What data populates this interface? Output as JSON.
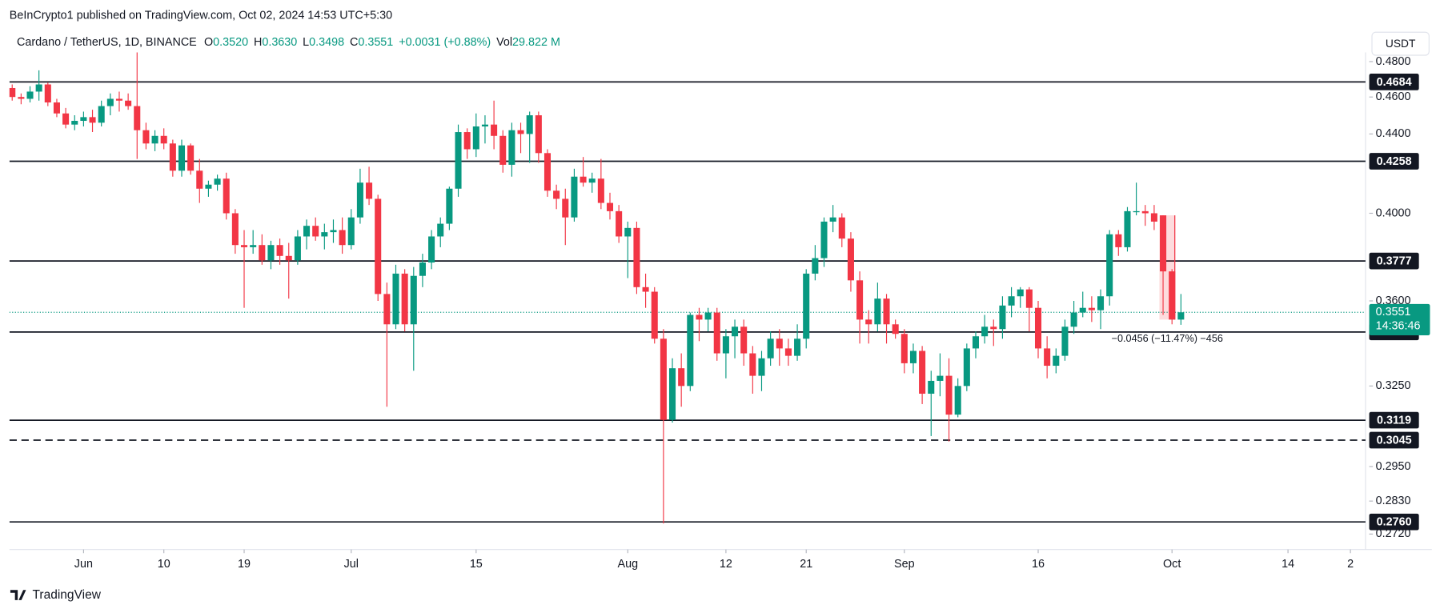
{
  "header": "BeInCrypto1 published on TradingView.com, Oct 02, 2024 14:53 UTC+5:30",
  "branding": "TradingView",
  "currency_button": "USDT",
  "chart_data": {
    "type": "candlestick",
    "legend": {
      "symbol": "Cardano / TetherUS, 1D, BINANCE",
      "items": [
        {
          "key": "O",
          "value": "0.3520"
        },
        {
          "key": "H",
          "value": "0.3630"
        },
        {
          "key": "L",
          "value": "0.3498"
        },
        {
          "key": "C",
          "value": "0.3551"
        }
      ],
      "change": "+0.0031 (+0.88%)",
      "volume_key": "Vol",
      "volume": "29.822 M"
    },
    "up_color": "#089981",
    "down_color": "#f23645",
    "log_scale": true,
    "grid": false,
    "x": [
      "2024-05-24",
      "2024-05-25",
      "2024-05-26",
      "2024-05-27",
      "2024-05-28",
      "2024-05-29",
      "2024-05-30",
      "2024-05-31",
      "2024-06-01",
      "2024-06-02",
      "2024-06-03",
      "2024-06-04",
      "2024-06-05",
      "2024-06-06",
      "2024-06-07",
      "2024-06-08",
      "2024-06-09",
      "2024-06-10",
      "2024-06-11",
      "2024-06-12",
      "2024-06-13",
      "2024-06-14",
      "2024-06-15",
      "2024-06-16",
      "2024-06-17",
      "2024-06-18",
      "2024-06-19",
      "2024-06-20",
      "2024-06-21",
      "2024-06-22",
      "2024-06-23",
      "2024-06-24",
      "2024-06-25",
      "2024-06-26",
      "2024-06-27",
      "2024-06-28",
      "2024-06-29",
      "2024-06-30",
      "2024-07-01",
      "2024-07-02",
      "2024-07-03",
      "2024-07-04",
      "2024-07-05",
      "2024-07-06",
      "2024-07-07",
      "2024-07-08",
      "2024-07-09",
      "2024-07-10",
      "2024-07-11",
      "2024-07-12",
      "2024-07-13",
      "2024-07-14",
      "2024-07-15",
      "2024-07-16",
      "2024-07-17",
      "2024-07-18",
      "2024-07-19",
      "2024-07-20",
      "2024-07-21",
      "2024-07-22",
      "2024-07-23",
      "2024-07-24",
      "2024-07-25",
      "2024-07-26",
      "2024-07-27",
      "2024-07-28",
      "2024-07-29",
      "2024-07-30",
      "2024-07-31",
      "2024-08-01",
      "2024-08-02",
      "2024-08-03",
      "2024-08-04",
      "2024-08-05",
      "2024-08-06",
      "2024-08-07",
      "2024-08-08",
      "2024-08-09",
      "2024-08-10",
      "2024-08-11",
      "2024-08-12",
      "2024-08-13",
      "2024-08-14",
      "2024-08-15",
      "2024-08-16",
      "2024-08-17",
      "2024-08-18",
      "2024-08-19",
      "2024-08-20",
      "2024-08-21",
      "2024-08-22",
      "2024-08-23",
      "2024-08-24",
      "2024-08-25",
      "2024-08-26",
      "2024-08-27",
      "2024-08-28",
      "2024-08-29",
      "2024-08-30",
      "2024-08-31",
      "2024-09-01",
      "2024-09-02",
      "2024-09-03",
      "2024-09-04",
      "2024-09-05",
      "2024-09-06",
      "2024-09-07",
      "2024-09-08",
      "2024-09-09",
      "2024-09-10",
      "2024-09-11",
      "2024-09-12",
      "2024-09-13",
      "2024-09-14",
      "2024-09-15",
      "2024-09-16",
      "2024-09-17",
      "2024-09-18",
      "2024-09-19",
      "2024-09-20",
      "2024-09-21",
      "2024-09-22",
      "2024-09-23",
      "2024-09-24",
      "2024-09-25",
      "2024-09-26",
      "2024-09-27",
      "2024-09-28",
      "2024-09-29",
      "2024-09-30",
      "2024-10-01",
      "2024-10-02"
    ],
    "open": [
      0.465,
      0.46,
      0.459,
      0.463,
      0.467,
      0.457,
      0.451,
      0.445,
      0.447,
      0.449,
      0.446,
      0.455,
      0.459,
      0.458,
      0.455,
      0.442,
      0.435,
      0.439,
      0.435,
      0.421,
      0.434,
      0.421,
      0.412,
      0.414,
      0.417,
      0.4,
      0.385,
      0.384,
      0.385,
      0.378,
      0.385,
      0.38,
      0.378,
      0.389,
      0.394,
      0.389,
      0.391,
      0.392,
      0.385,
      0.398,
      0.415,
      0.407,
      0.363,
      0.35,
      0.372,
      0.35,
      0.371,
      0.377,
      0.389,
      0.395,
      0.412,
      0.441,
      0.432,
      0.444,
      0.445,
      0.439,
      0.424,
      0.442,
      0.44,
      0.45,
      0.43,
      0.411,
      0.407,
      0.398,
      0.418,
      0.415,
      0.417,
      0.405,
      0.401,
      0.389,
      0.393,
      0.366,
      0.364,
      0.344,
      0.312,
      0.332,
      0.325,
      0.354,
      0.352,
      0.355,
      0.338,
      0.345,
      0.349,
      0.338,
      0.329,
      0.336,
      0.344,
      0.34,
      0.337,
      0.344,
      0.372,
      0.379,
      0.396,
      0.398,
      0.388,
      0.369,
      0.352,
      0.35,
      0.361,
      0.35,
      0.346,
      0.334,
      0.339,
      0.322,
      0.327,
      0.329,
      0.314,
      0.325,
      0.34,
      0.345,
      0.349,
      0.348,
      0.358,
      0.362,
      0.365,
      0.357,
      0.34,
      0.333,
      0.337,
      0.349,
      0.355,
      0.357,
      0.356,
      0.362,
      0.39,
      0.384,
      0.4005,
      0.401,
      0.4,
      0.399,
      0.373,
      0.352
    ],
    "high": [
      0.467,
      0.462,
      0.466,
      0.475,
      0.468,
      0.459,
      0.454,
      0.45,
      0.452,
      0.453,
      0.458,
      0.462,
      0.463,
      0.462,
      0.49,
      0.446,
      0.442,
      0.443,
      0.437,
      0.437,
      0.435,
      0.427,
      0.416,
      0.419,
      0.42,
      0.402,
      0.392,
      0.392,
      0.39,
      0.387,
      0.388,
      0.386,
      0.392,
      0.397,
      0.398,
      0.395,
      0.397,
      0.398,
      0.402,
      0.422,
      0.423,
      0.409,
      0.368,
      0.376,
      0.374,
      0.375,
      0.381,
      0.392,
      0.398,
      0.413,
      0.445,
      0.443,
      0.451,
      0.45,
      0.458,
      0.442,
      0.446,
      0.446,
      0.452,
      0.452,
      0.432,
      0.414,
      0.412,
      0.422,
      0.428,
      0.42,
      0.427,
      0.41,
      0.404,
      0.396,
      0.396,
      0.372,
      0.366,
      0.348,
      0.336,
      0.338,
      0.355,
      0.357,
      0.357,
      0.357,
      0.348,
      0.352,
      0.352,
      0.341,
      0.339,
      0.347,
      0.348,
      0.344,
      0.35,
      0.374,
      0.385,
      0.398,
      0.404,
      0.4,
      0.391,
      0.373,
      0.356,
      0.368,
      0.363,
      0.352,
      0.348,
      0.342,
      0.341,
      0.331,
      0.338,
      0.336,
      0.328,
      0.342,
      0.347,
      0.354,
      0.352,
      0.362,
      0.366,
      0.366,
      0.366,
      0.36,
      0.345,
      0.34,
      0.352,
      0.36,
      0.364,
      0.362,
      0.365,
      0.392,
      0.392,
      0.403,
      0.415,
      0.404,
      0.404,
      0.399,
      0.374,
      0.363
    ],
    "low": [
      0.458,
      0.456,
      0.457,
      0.458,
      0.455,
      0.449,
      0.443,
      0.442,
      0.444,
      0.441,
      0.444,
      0.45,
      0.452,
      0.453,
      0.427,
      0.432,
      0.431,
      0.432,
      0.418,
      0.418,
      0.419,
      0.405,
      0.408,
      0.411,
      0.397,
      0.381,
      0.357,
      0.381,
      0.376,
      0.374,
      0.376,
      0.361,
      0.376,
      0.383,
      0.387,
      0.383,
      0.386,
      0.381,
      0.383,
      0.395,
      0.404,
      0.36,
      0.317,
      0.348,
      0.347,
      0.331,
      0.366,
      0.374,
      0.384,
      0.392,
      0.408,
      0.427,
      0.428,
      0.435,
      0.432,
      0.42,
      0.418,
      0.43,
      0.425,
      0.425,
      0.408,
      0.402,
      0.385,
      0.396,
      0.413,
      0.41,
      0.402,
      0.397,
      0.386,
      0.37,
      0.363,
      0.357,
      0.342,
      0.2755,
      0.311,
      0.317,
      0.323,
      0.343,
      0.347,
      0.335,
      0.328,
      0.336,
      0.333,
      0.322,
      0.323,
      0.333,
      0.333,
      0.333,
      0.335,
      0.34,
      0.369,
      0.375,
      0.391,
      0.384,
      0.364,
      0.342,
      0.342,
      0.347,
      0.342,
      0.344,
      0.33,
      0.33,
      0.318,
      0.306,
      0.321,
      0.304,
      0.313,
      0.323,
      0.336,
      0.342,
      0.341,
      0.344,
      0.353,
      0.357,
      0.347,
      0.336,
      0.328,
      0.33,
      0.335,
      0.346,
      0.353,
      0.351,
      0.348,
      0.358,
      0.38,
      0.382,
      0.399,
      0.394,
      0.392,
      0.354,
      0.35,
      0.3498
    ],
    "close": [
      0.46,
      0.459,
      0.463,
      0.467,
      0.457,
      0.451,
      0.445,
      0.447,
      0.449,
      0.446,
      0.455,
      0.459,
      0.458,
      0.455,
      0.442,
      0.435,
      0.439,
      0.435,
      0.421,
      0.434,
      0.421,
      0.412,
      0.414,
      0.417,
      0.4,
      0.385,
      0.384,
      0.385,
      0.378,
      0.385,
      0.38,
      0.378,
      0.389,
      0.394,
      0.389,
      0.391,
      0.392,
      0.385,
      0.398,
      0.415,
      0.407,
      0.363,
      0.35,
      0.372,
      0.35,
      0.371,
      0.377,
      0.389,
      0.395,
      0.412,
      0.441,
      0.432,
      0.444,
      0.445,
      0.439,
      0.424,
      0.442,
      0.44,
      0.45,
      0.43,
      0.411,
      0.407,
      0.398,
      0.418,
      0.415,
      0.417,
      0.405,
      0.401,
      0.389,
      0.393,
      0.366,
      0.364,
      0.344,
      0.312,
      0.332,
      0.325,
      0.354,
      0.352,
      0.355,
      0.338,
      0.345,
      0.349,
      0.338,
      0.329,
      0.336,
      0.344,
      0.34,
      0.337,
      0.344,
      0.372,
      0.379,
      0.396,
      0.398,
      0.388,
      0.369,
      0.352,
      0.35,
      0.361,
      0.35,
      0.346,
      0.334,
      0.339,
      0.322,
      0.327,
      0.329,
      0.314,
      0.325,
      0.34,
      0.345,
      0.349,
      0.348,
      0.358,
      0.362,
      0.365,
      0.357,
      0.34,
      0.333,
      0.337,
      0.349,
      0.355,
      0.357,
      0.356,
      0.362,
      0.39,
      0.384,
      0.401,
      0.401,
      0.4,
      0.396,
      0.373,
      0.352,
      0.3551
    ],
    "xlim": [
      "2024-05-23",
      "2024-10-23"
    ],
    "xticks": [
      {
        "value": "2024-06-01",
        "label": "Jun"
      },
      {
        "value": "2024-06-10",
        "label": "10"
      },
      {
        "value": "2024-06-19",
        "label": "19"
      },
      {
        "value": "2024-07-01",
        "label": "Jul"
      },
      {
        "value": "2024-07-15",
        "label": "15"
      },
      {
        "value": "2024-08-01",
        "label": "Aug"
      },
      {
        "value": "2024-08-12",
        "label": "12"
      },
      {
        "value": "2024-08-21",
        "label": "21"
      },
      {
        "value": "2024-09-01",
        "label": "Sep"
      },
      {
        "value": "2024-09-16",
        "label": "16"
      },
      {
        "value": "2024-10-01",
        "label": "Oct"
      },
      {
        "value": "2024-10-14",
        "label": "14"
      },
      {
        "value": "2024-10-21",
        "label": "2"
      }
    ],
    "ylim": [
      0.267,
      0.4853
    ],
    "yticks": [
      {
        "value": 0.48,
        "label": "0.4800"
      },
      {
        "value": 0.46,
        "label": "0.4600"
      },
      {
        "value": 0.44,
        "label": "0.4400"
      },
      {
        "value": 0.4,
        "label": "0.4000"
      },
      {
        "value": 0.36,
        "label": "0.3600"
      },
      {
        "value": 0.325,
        "label": "0.3250"
      },
      {
        "value": 0.295,
        "label": "0.2950"
      },
      {
        "value": 0.283,
        "label": "0.2830"
      },
      {
        "value": 0.272,
        "label": "0.2720"
      }
    ],
    "levels": [
      {
        "value": 0.4684,
        "dashed": false
      },
      {
        "value": 0.4258,
        "dashed": false
      },
      {
        "value": 0.3777,
        "dashed": false
      },
      {
        "value": 0.3468,
        "dashed": false
      },
      {
        "value": 0.3119,
        "dashed": false
      },
      {
        "value": 0.3045,
        "dashed": true
      },
      {
        "value": 0.276,
        "label": "0.2760",
        "dashed": false
      }
    ],
    "level_color": "#131722",
    "last_price": 0.3551,
    "countdown": "14:36:46",
    "annotation": "−0.0456 (−11.47%) −456"
  }
}
